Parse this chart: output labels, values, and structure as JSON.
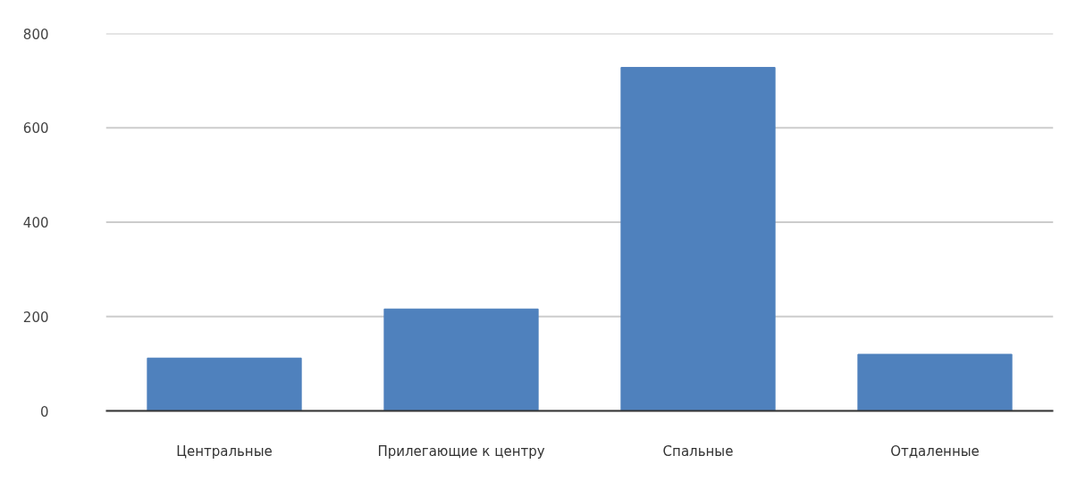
{
  "chart_data": {
    "type": "bar",
    "categories": [
      "Центральные",
      "Прилегающие к центру",
      "Спальные",
      "Отдаленные"
    ],
    "values": [
      112,
      216,
      728,
      120
    ],
    "color": "#4f81bd",
    "ylim": [
      0,
      800
    ],
    "yticks": [
      0,
      200,
      400,
      600,
      800
    ],
    "grid": "y"
  }
}
